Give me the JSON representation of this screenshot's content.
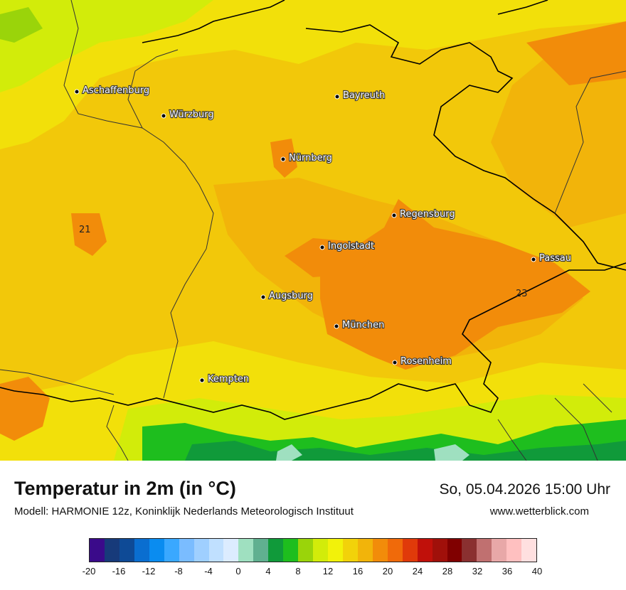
{
  "header": {
    "title": "Temperatur in 2m (in °C)",
    "subtitle": "Modell: HARMONIE 12z, Koninklijk Nederlands Meteorologisch Instituut",
    "datetime": "So, 05.04.2026 15:00 Uhr",
    "website": "www.wetterblick.com"
  },
  "cities": [
    {
      "name": "Aschaffenburg"
    },
    {
      "name": "Würzburg"
    },
    {
      "name": "Bayreuth"
    },
    {
      "name": "Nürnberg"
    },
    {
      "name": "Regensburg"
    },
    {
      "name": "Ingolstadt"
    },
    {
      "name": "Passau"
    },
    {
      "name": "Augsburg"
    },
    {
      "name": "München"
    },
    {
      "name": "Rosenheim"
    },
    {
      "name": "Kempten"
    }
  ],
  "value_labels": [
    "21",
    "23"
  ],
  "legend": {
    "colors": [
      "#3a0a8a",
      "#173a7a",
      "#0e4a96",
      "#0a6ed0",
      "#0a8cf0",
      "#3aa8ff",
      "#7abcff",
      "#9fcfff",
      "#c0e0ff",
      "#dcecff",
      "#9fe0c0",
      "#60b090",
      "#109a3a",
      "#1ebe1e",
      "#9ad40a",
      "#d2ec0a",
      "#f2f20a",
      "#f2d20a",
      "#f2b40a",
      "#f28c0a",
      "#f06a0a",
      "#e03a0a",
      "#c0100a",
      "#a0100a",
      "#800000",
      "#8a3030",
      "#c07070",
      "#e8a8a8",
      "#ffc0c0",
      "#ffe0e0"
    ],
    "ticks": [
      "-20",
      "-16",
      "-12",
      "-8",
      "-4",
      "0",
      "4",
      "8",
      "12",
      "16",
      "20",
      "24",
      "28",
      "32",
      "36",
      "40"
    ]
  }
}
